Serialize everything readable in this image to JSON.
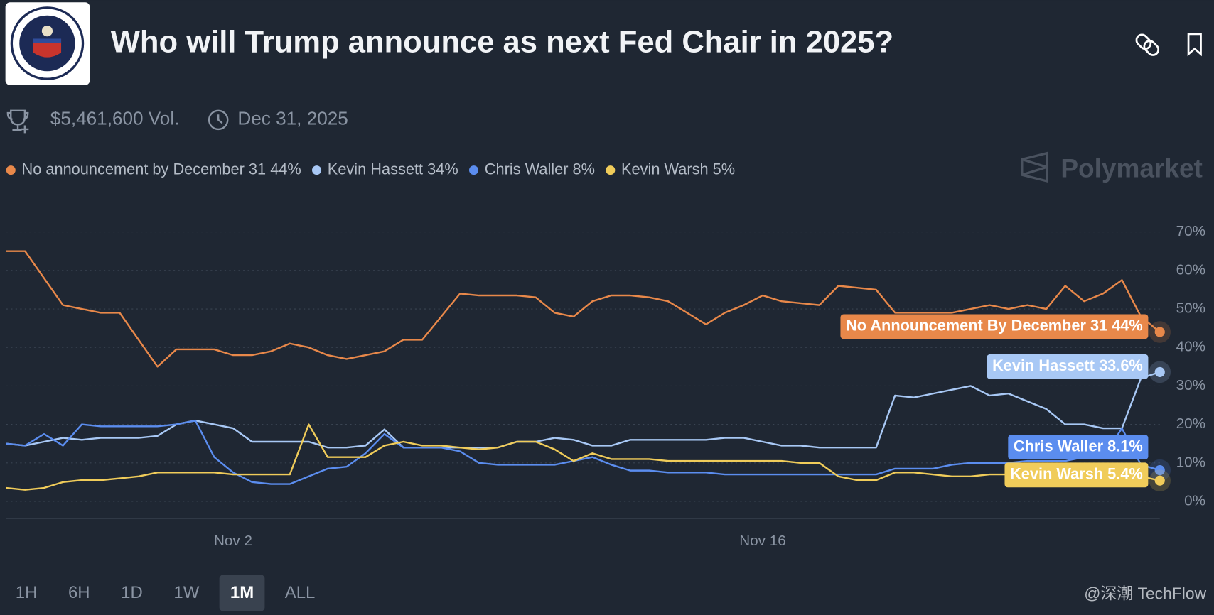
{
  "header": {
    "title": "Who will Trump announce as next Fed Chair in 2025?",
    "volume": "$5,461,600 Vol.",
    "end_date": "Dec 31, 2025",
    "brand": "Polymarket"
  },
  "chart_data": {
    "type": "line",
    "categories": [
      null,
      null,
      null,
      null,
      null,
      null,
      null,
      null,
      null,
      null,
      null,
      null,
      "Nov 2",
      null,
      null,
      null,
      null,
      null,
      null,
      null,
      null,
      null,
      null,
      null,
      null,
      null,
      null,
      null,
      null,
      null,
      null,
      null,
      null,
      null,
      null,
      null,
      null,
      null,
      null,
      null,
      "Nov 16",
      null,
      null,
      null,
      null,
      null,
      null,
      null,
      null,
      null,
      null,
      null,
      null,
      null,
      null,
      null,
      null,
      null,
      null,
      null,
      null,
      null
    ],
    "series": [
      {
        "name": "No announcement by December 31",
        "legend_label": "44%",
        "end_label": "No Announcement By December 31 44%",
        "color": "#e8884a",
        "label_text_color": "#ffffff",
        "values": [
          65,
          65,
          58,
          51,
          50,
          49,
          49,
          42,
          35,
          39.5,
          39.5,
          39.5,
          38,
          38,
          39,
          41,
          40,
          38,
          37,
          38,
          39,
          42,
          42,
          48,
          54,
          53.5,
          53.5,
          53.5,
          53,
          49,
          48,
          52,
          53.5,
          53.5,
          53,
          52,
          49,
          46,
          49,
          51,
          53.5,
          52,
          51.5,
          51,
          56,
          55.5,
          55,
          49,
          49,
          49,
          49,
          50,
          51,
          50,
          51,
          50,
          56,
          52,
          54,
          57.5,
          48,
          44
        ]
      },
      {
        "name": "Kevin Hassett",
        "legend_label": "34%",
        "end_label": "Kevin Hassett 33.6%",
        "color": "#a8c8f5",
        "label_text_color": "#ffffff",
        "values": [
          15,
          14.5,
          15.5,
          16.5,
          16,
          16.5,
          16.5,
          16.5,
          17,
          20,
          21,
          20,
          19,
          15.5,
          15.5,
          15.5,
          15.5,
          14,
          14,
          14.5,
          18.7,
          14,
          14,
          14,
          14,
          14,
          14,
          15.5,
          15.5,
          16.5,
          16,
          14.5,
          14.5,
          16,
          16,
          16,
          16,
          16,
          16.5,
          16.5,
          15.5,
          14.5,
          14.5,
          14,
          14,
          14,
          14,
          27.5,
          27,
          28,
          29,
          30,
          27.5,
          28,
          26,
          24,
          20,
          20,
          19,
          19,
          32,
          33.6
        ]
      },
      {
        "name": "Chris Waller",
        "legend_label": "8%",
        "end_label": "Chris Waller 8.1%",
        "color": "#5b8def",
        "label_text_color": "#ffffff",
        "values": [
          15,
          14.5,
          17.5,
          14.5,
          20,
          19.5,
          19.5,
          19.5,
          19.5,
          20,
          21,
          11.5,
          7.5,
          5,
          4.5,
          4.5,
          6.5,
          8.5,
          9,
          12.5,
          17.5,
          14,
          14,
          14,
          13,
          10,
          9.5,
          9.5,
          9.5,
          9.5,
          10.5,
          11.5,
          9.5,
          8,
          8,
          7.5,
          7.5,
          7.5,
          7,
          7,
          7,
          7,
          7,
          7,
          7,
          7,
          7,
          8.5,
          8.5,
          8.5,
          9.5,
          10,
          10,
          10,
          10.5,
          10.5,
          10.5,
          11.5,
          11.5,
          19,
          9.5,
          8.1
        ]
      },
      {
        "name": "Kevin Warsh",
        "legend_label": "5%",
        "end_label": "Kevin Warsh 5.4%",
        "color": "#f0cc5a",
        "label_text_color": "#ffffff",
        "values": [
          3.5,
          3,
          3.5,
          5,
          5.5,
          5.5,
          6,
          6.5,
          7.5,
          7.5,
          7.5,
          7.5,
          7,
          7,
          7,
          7,
          20,
          11.5,
          11.5,
          11.5,
          14.5,
          15.5,
          14.5,
          14.5,
          14,
          13.5,
          14,
          15.5,
          15.5,
          13.5,
          10.5,
          12.5,
          11,
          11,
          11,
          10.5,
          10.5,
          10.5,
          10.5,
          10.5,
          10.5,
          10.5,
          10,
          10,
          6.5,
          5.5,
          5.5,
          7.5,
          7.5,
          7,
          6.5,
          6.5,
          7,
          7,
          7,
          7,
          6.5,
          6.5,
          6.5,
          6.5,
          6.5,
          5.4
        ]
      }
    ],
    "ylim": [
      -4.4,
      76
    ],
    "yticks": [
      {
        "value": 0,
        "label": "0%"
      },
      {
        "value": 10,
        "label": "10%"
      },
      {
        "value": 20,
        "label": "20%"
      },
      {
        "value": 30,
        "label": "30%"
      },
      {
        "value": 40,
        "label": "40%"
      },
      {
        "value": 50,
        "label": "50%"
      },
      {
        "value": 60,
        "label": "60%"
      },
      {
        "value": 70,
        "label": "70%"
      }
    ],
    "grid": true
  },
  "range_buttons": [
    {
      "label": "1H"
    },
    {
      "label": "6H"
    },
    {
      "label": "1D"
    },
    {
      "label": "1W"
    },
    {
      "label": "1M",
      "selected": true
    },
    {
      "label": "ALL"
    }
  ],
  "watermark": "@深潮 TechFlow"
}
